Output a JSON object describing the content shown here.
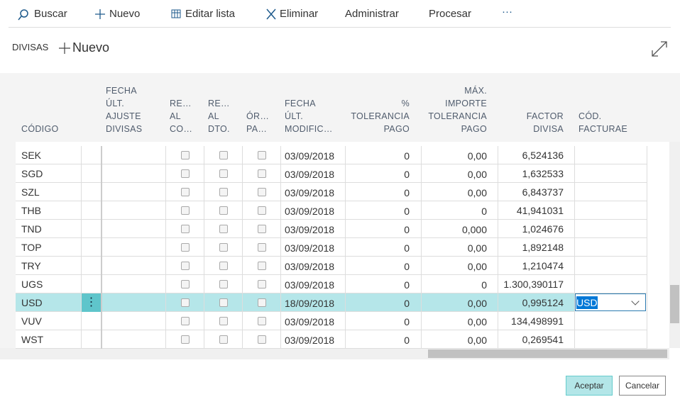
{
  "toolbar": [
    "Buscar",
    "Nuevo",
    "Editar lista",
    "Eliminar",
    "Administrar",
    "Procesar"
  ],
  "more": "···",
  "page": {
    "title": "DIVISAS",
    "new": "Nuevo"
  },
  "columns": [
    {
      "lines": [
        "CÓDIGO"
      ]
    },
    {
      "lines": [
        "FECHA",
        "ÚLT.",
        "AJUSTE",
        "DIVISAS"
      ]
    },
    {
      "lines": [
        "RE…",
        "AL",
        "CO…"
      ]
    },
    {
      "lines": [
        "RE…",
        "AL",
        "DTO."
      ]
    },
    {
      "lines": [
        "ÓR…",
        "PA…"
      ]
    },
    {
      "lines": [
        "FECHA",
        "ÚLT.",
        "MODIFIC…"
      ]
    },
    {
      "lines": [
        "%",
        "TOLERANCIA",
        "PAGO"
      ]
    },
    {
      "lines": [
        "MÁX.",
        "IMPORTE",
        "TOLERANCIA",
        "PAGO"
      ]
    },
    {
      "lines": [
        "FACTOR",
        "DIVISA"
      ]
    },
    {
      "lines": [
        "CÓD.",
        "FACTURAE"
      ]
    }
  ],
  "rows": [
    {
      "code": "SEK",
      "date": "03/09/2018",
      "tolerance": "0",
      "max": "0,00",
      "factor": "6,524136"
    },
    {
      "code": "SGD",
      "date": "03/09/2018",
      "tolerance": "0",
      "max": "0,00",
      "factor": "1,632533"
    },
    {
      "code": "SZL",
      "date": "03/09/2018",
      "tolerance": "0",
      "max": "0,00",
      "factor": "6,843737"
    },
    {
      "code": "THB",
      "date": "03/09/2018",
      "tolerance": "0",
      "max": "0",
      "factor": "41,941031"
    },
    {
      "code": "TND",
      "date": "03/09/2018",
      "tolerance": "0",
      "max": "0,000",
      "factor": "1,024676"
    },
    {
      "code": "TOP",
      "date": "03/09/2018",
      "tolerance": "0",
      "max": "0,00",
      "factor": "1,892148"
    },
    {
      "code": "TRY",
      "date": "03/09/2018",
      "tolerance": "0",
      "max": "0,00",
      "factor": "1,210474"
    },
    {
      "code": "UGS",
      "date": "03/09/2018",
      "tolerance": "0",
      "max": "0",
      "factor": "1.300,390117"
    },
    {
      "code": "USD",
      "date": "18/09/2018",
      "tolerance": "0",
      "max": "0,00",
      "factor": "0,995124",
      "facturae": "USD",
      "selected": true
    },
    {
      "code": "VUV",
      "date": "03/09/2018",
      "tolerance": "0",
      "max": "0,00",
      "factor": "134,498991"
    },
    {
      "code": "WST",
      "date": "03/09/2018",
      "tolerance": "0",
      "max": "0,00",
      "factor": "0,269541"
    }
  ],
  "buttons": [
    "Aceptar",
    "Cancelar"
  ]
}
